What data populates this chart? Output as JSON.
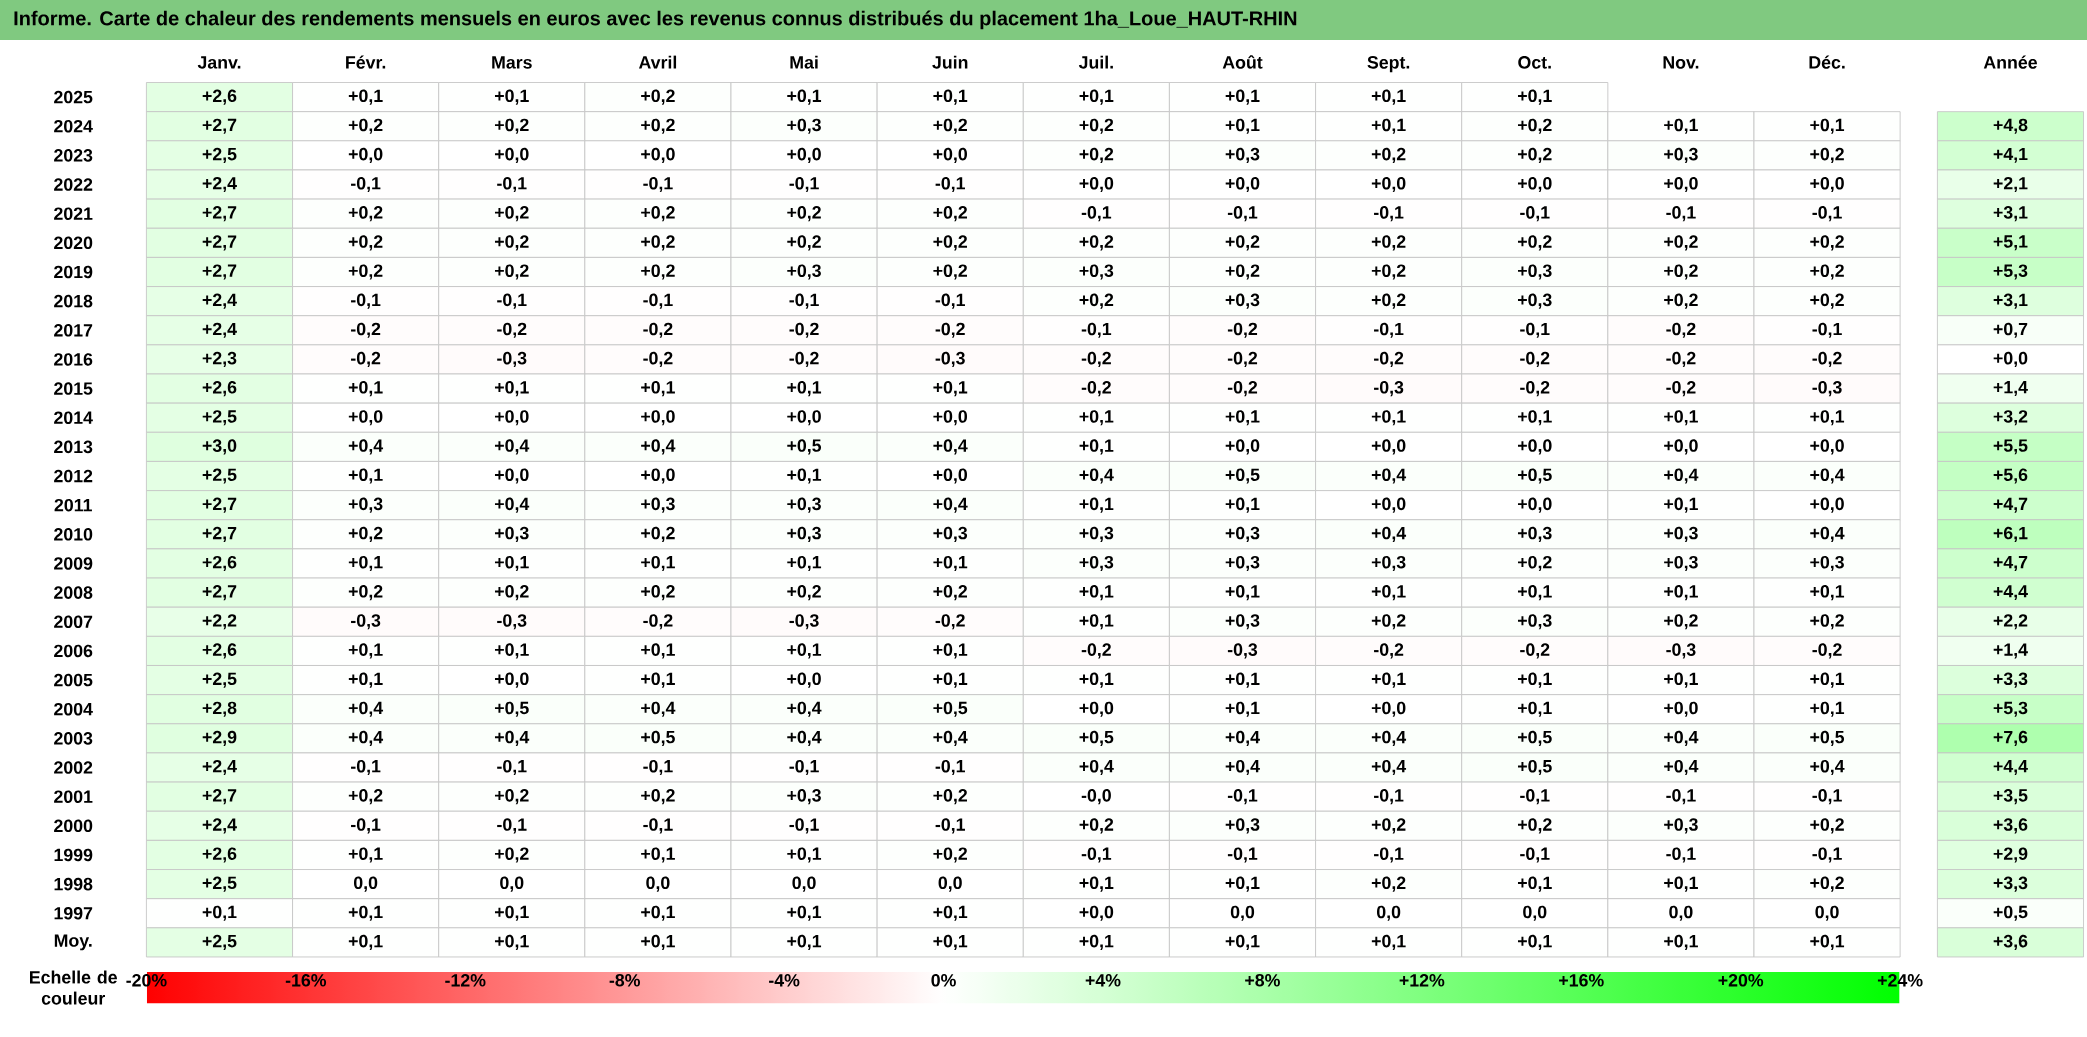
{
  "chart_data": {
    "type": "heatmap",
    "title": "Informe. Carte de chaleur des rendements mensuels en euros avec les revenus connus distribués du placement 1ha_Loue_HAUT-RHIN",
    "categories": [
      "Janv.",
      "Févr.",
      "Mars",
      "Avril",
      "Mai",
      "Juin",
      "Juil.",
      "Août",
      "Sept.",
      "Oct.",
      "Nov.",
      "Déc.",
      "Année"
    ],
    "y_categories": [
      "2025",
      "2024",
      "2023",
      "2022",
      "2021",
      "2020",
      "2019",
      "2018",
      "2017",
      "2016",
      "2015",
      "2014",
      "2013",
      "2012",
      "2011",
      "2010",
      "2009",
      "2008",
      "2007",
      "2006",
      "2005",
      "2004",
      "2003",
      "2002",
      "2001",
      "2000",
      "1999",
      "1998",
      "1997",
      "Moy."
    ],
    "cells": [
      [
        2.6,
        0.1,
        0.1,
        0.2,
        0.1,
        0.1,
        0.1,
        0.1,
        0.1,
        0.1,
        null,
        null,
        null
      ],
      [
        2.7,
        0.2,
        0.2,
        0.2,
        0.3,
        0.2,
        0.2,
        0.1,
        0.1,
        0.2,
        0.1,
        0.1,
        4.8
      ],
      [
        2.5,
        0.0,
        0.0,
        0.0,
        0.0,
        0.0,
        0.2,
        0.3,
        0.2,
        0.2,
        0.3,
        0.2,
        4.1
      ],
      [
        2.4,
        -0.1,
        -0.1,
        -0.1,
        -0.1,
        -0.1,
        0.0,
        0.0,
        0.0,
        0.0,
        0.0,
        0.0,
        2.1
      ],
      [
        2.7,
        0.2,
        0.2,
        0.2,
        0.2,
        0.2,
        -0.1,
        -0.1,
        -0.1,
        -0.1,
        -0.1,
        -0.1,
        3.1
      ],
      [
        2.7,
        0.2,
        0.2,
        0.2,
        0.2,
        0.2,
        0.2,
        0.2,
        0.2,
        0.2,
        0.2,
        0.2,
        5.1
      ],
      [
        2.7,
        0.2,
        0.2,
        0.2,
        0.3,
        0.2,
        0.3,
        0.2,
        0.2,
        0.3,
        0.2,
        0.2,
        5.3
      ],
      [
        2.4,
        -0.1,
        -0.1,
        -0.1,
        -0.1,
        -0.1,
        0.2,
        0.3,
        0.2,
        0.3,
        0.2,
        0.2,
        3.1
      ],
      [
        2.4,
        -0.2,
        -0.2,
        -0.2,
        -0.2,
        -0.2,
        -0.1,
        -0.2,
        -0.1,
        -0.1,
        -0.2,
        -0.1,
        0.7
      ],
      [
        2.3,
        -0.2,
        -0.3,
        -0.2,
        -0.2,
        -0.3,
        -0.2,
        -0.2,
        -0.2,
        -0.2,
        -0.2,
        -0.2,
        0.0
      ],
      [
        2.6,
        0.1,
        0.1,
        0.1,
        0.1,
        0.1,
        -0.2,
        -0.2,
        -0.3,
        -0.2,
        -0.2,
        -0.3,
        1.4
      ],
      [
        2.5,
        0.0,
        0.0,
        0.0,
        0.0,
        0.0,
        0.1,
        0.1,
        0.1,
        0.1,
        0.1,
        0.1,
        3.2
      ],
      [
        3.0,
        0.4,
        0.4,
        0.4,
        0.5,
        0.4,
        0.1,
        0.0,
        0.0,
        0.0,
        0.0,
        0.0,
        5.5
      ],
      [
        2.5,
        0.1,
        0.0,
        0.0,
        0.1,
        0.0,
        0.4,
        0.5,
        0.4,
        0.5,
        0.4,
        0.4,
        5.6
      ],
      [
        2.7,
        0.3,
        0.4,
        0.3,
        0.3,
        0.4,
        0.1,
        0.1,
        0.0,
        0.0,
        0.1,
        0.0,
        4.7
      ],
      [
        2.7,
        0.2,
        0.3,
        0.2,
        0.3,
        0.3,
        0.3,
        0.3,
        0.4,
        0.3,
        0.3,
        0.4,
        6.1
      ],
      [
        2.6,
        0.1,
        0.1,
        0.1,
        0.1,
        0.1,
        0.3,
        0.3,
        0.3,
        0.2,
        0.3,
        0.3,
        4.7
      ],
      [
        2.7,
        0.2,
        0.2,
        0.2,
        0.2,
        0.2,
        0.1,
        0.1,
        0.1,
        0.1,
        0.1,
        0.1,
        4.4
      ],
      [
        2.2,
        -0.3,
        -0.3,
        -0.2,
        -0.3,
        -0.2,
        0.1,
        0.3,
        0.2,
        0.3,
        0.2,
        0.2,
        2.2
      ],
      [
        2.6,
        0.1,
        0.1,
        0.1,
        0.1,
        0.1,
        -0.2,
        -0.3,
        -0.2,
        -0.2,
        -0.3,
        -0.2,
        1.4
      ],
      [
        2.5,
        0.1,
        0.0,
        0.1,
        0.0,
        0.1,
        0.1,
        0.1,
        0.1,
        0.1,
        0.1,
        0.1,
        3.3
      ],
      [
        2.8,
        0.4,
        0.5,
        0.4,
        0.4,
        0.5,
        0.0,
        0.1,
        0.0,
        0.1,
        0.0,
        0.1,
        5.3
      ],
      [
        2.9,
        0.4,
        0.4,
        0.5,
        0.4,
        0.4,
        0.5,
        0.4,
        0.4,
        0.5,
        0.4,
        0.5,
        7.6
      ],
      [
        2.4,
        -0.1,
        -0.1,
        -0.1,
        -0.1,
        -0.1,
        0.4,
        0.4,
        0.4,
        0.5,
        0.4,
        0.4,
        4.4
      ],
      [
        2.7,
        0.2,
        0.2,
        0.2,
        0.3,
        0.2,
        -0.0,
        -0.1,
        -0.1,
        -0.1,
        -0.1,
        -0.1,
        3.5
      ],
      [
        2.4,
        -0.1,
        -0.1,
        -0.1,
        -0.1,
        -0.1,
        0.2,
        0.3,
        0.2,
        0.2,
        0.3,
        0.2,
        3.6
      ],
      [
        2.6,
        0.1,
        0.2,
        0.1,
        0.1,
        0.2,
        -0.1,
        -0.1,
        -0.1,
        -0.1,
        -0.1,
        -0.1,
        2.9
      ],
      [
        2.5,
        0.0,
        0.0,
        0.0,
        0.0,
        0.0,
        0.1,
        0.1,
        0.2,
        0.1,
        0.1,
        0.2,
        3.3
      ],
      [
        0.1,
        0.1,
        0.1,
        0.1,
        0.1,
        0.1,
        0.0,
        0.0,
        0.0,
        0.0,
        0.0,
        0.0,
        0.5
      ],
      [
        2.5,
        0.1,
        0.1,
        0.1,
        0.1,
        0.1,
        0.1,
        0.1,
        0.1,
        0.1,
        0.1,
        0.1,
        3.6
      ]
    ],
    "cell_labels": [
      [
        "+2,6",
        "+0,1",
        "+0,1",
        "+0,2",
        "+0,1",
        "+0,1",
        "+0,1",
        "+0,1",
        "+0,1",
        "+0,1",
        null,
        null,
        null
      ],
      [
        "+2,7",
        "+0,2",
        "+0,2",
        "+0,2",
        "+0,3",
        "+0,2",
        "+0,2",
        "+0,1",
        "+0,1",
        "+0,2",
        "+0,1",
        "+0,1",
        "+4,8"
      ],
      [
        "+2,5",
        "+0,0",
        "+0,0",
        "+0,0",
        "+0,0",
        "+0,0",
        "+0,2",
        "+0,3",
        "+0,2",
        "+0,2",
        "+0,3",
        "+0,2",
        "+4,1"
      ],
      [
        "+2,4",
        "-0,1",
        "-0,1",
        "-0,1",
        "-0,1",
        "-0,1",
        "+0,0",
        "+0,0",
        "+0,0",
        "+0,0",
        "+0,0",
        "+0,0",
        "+2,1"
      ],
      [
        "+2,7",
        "+0,2",
        "+0,2",
        "+0,2",
        "+0,2",
        "+0,2",
        "-0,1",
        "-0,1",
        "-0,1",
        "-0,1",
        "-0,1",
        "-0,1",
        "+3,1"
      ],
      [
        "+2,7",
        "+0,2",
        "+0,2",
        "+0,2",
        "+0,2",
        "+0,2",
        "+0,2",
        "+0,2",
        "+0,2",
        "+0,2",
        "+0,2",
        "+0,2",
        "+5,1"
      ],
      [
        "+2,7",
        "+0,2",
        "+0,2",
        "+0,2",
        "+0,3",
        "+0,2",
        "+0,3",
        "+0,2",
        "+0,2",
        "+0,3",
        "+0,2",
        "+0,2",
        "+5,3"
      ],
      [
        "+2,4",
        "-0,1",
        "-0,1",
        "-0,1",
        "-0,1",
        "-0,1",
        "+0,2",
        "+0,3",
        "+0,2",
        "+0,3",
        "+0,2",
        "+0,2",
        "+3,1"
      ],
      [
        "+2,4",
        "-0,2",
        "-0,2",
        "-0,2",
        "-0,2",
        "-0,2",
        "-0,1",
        "-0,2",
        "-0,1",
        "-0,1",
        "-0,2",
        "-0,1",
        "+0,7"
      ],
      [
        "+2,3",
        "-0,2",
        "-0,3",
        "-0,2",
        "-0,2",
        "-0,3",
        "-0,2",
        "-0,2",
        "-0,2",
        "-0,2",
        "-0,2",
        "-0,2",
        "+0,0"
      ],
      [
        "+2,6",
        "+0,1",
        "+0,1",
        "+0,1",
        "+0,1",
        "+0,1",
        "-0,2",
        "-0,2",
        "-0,3",
        "-0,2",
        "-0,2",
        "-0,3",
        "+1,4"
      ],
      [
        "+2,5",
        "+0,0",
        "+0,0",
        "+0,0",
        "+0,0",
        "+0,0",
        "+0,1",
        "+0,1",
        "+0,1",
        "+0,1",
        "+0,1",
        "+0,1",
        "+3,2"
      ],
      [
        "+3,0",
        "+0,4",
        "+0,4",
        "+0,4",
        "+0,5",
        "+0,4",
        "+0,1",
        "+0,0",
        "+0,0",
        "+0,0",
        "+0,0",
        "+0,0",
        "+5,5"
      ],
      [
        "+2,5",
        "+0,1",
        "+0,0",
        "+0,0",
        "+0,1",
        "+0,0",
        "+0,4",
        "+0,5",
        "+0,4",
        "+0,5",
        "+0,4",
        "+0,4",
        "+5,6"
      ],
      [
        "+2,7",
        "+0,3",
        "+0,4",
        "+0,3",
        "+0,3",
        "+0,4",
        "+0,1",
        "+0,1",
        "+0,0",
        "+0,0",
        "+0,1",
        "+0,0",
        "+4,7"
      ],
      [
        "+2,7",
        "+0,2",
        "+0,3",
        "+0,2",
        "+0,3",
        "+0,3",
        "+0,3",
        "+0,3",
        "+0,4",
        "+0,3",
        "+0,3",
        "+0,4",
        "+6,1"
      ],
      [
        "+2,6",
        "+0,1",
        "+0,1",
        "+0,1",
        "+0,1",
        "+0,1",
        "+0,3",
        "+0,3",
        "+0,3",
        "+0,2",
        "+0,3",
        "+0,3",
        "+4,7"
      ],
      [
        "+2,7",
        "+0,2",
        "+0,2",
        "+0,2",
        "+0,2",
        "+0,2",
        "+0,1",
        "+0,1",
        "+0,1",
        "+0,1",
        "+0,1",
        "+0,1",
        "+4,4"
      ],
      [
        "+2,2",
        "-0,3",
        "-0,3",
        "-0,2",
        "-0,3",
        "-0,2",
        "+0,1",
        "+0,3",
        "+0,2",
        "+0,3",
        "+0,2",
        "+0,2",
        "+2,2"
      ],
      [
        "+2,6",
        "+0,1",
        "+0,1",
        "+0,1",
        "+0,1",
        "+0,1",
        "-0,2",
        "-0,3",
        "-0,2",
        "-0,2",
        "-0,3",
        "-0,2",
        "+1,4"
      ],
      [
        "+2,5",
        "+0,1",
        "+0,0",
        "+0,1",
        "+0,0",
        "+0,1",
        "+0,1",
        "+0,1",
        "+0,1",
        "+0,1",
        "+0,1",
        "+0,1",
        "+3,3"
      ],
      [
        "+2,8",
        "+0,4",
        "+0,5",
        "+0,4",
        "+0,4",
        "+0,5",
        "+0,0",
        "+0,1",
        "+0,0",
        "+0,1",
        "+0,0",
        "+0,1",
        "+5,3"
      ],
      [
        "+2,9",
        "+0,4",
        "+0,4",
        "+0,5",
        "+0,4",
        "+0,4",
        "+0,5",
        "+0,4",
        "+0,4",
        "+0,5",
        "+0,4",
        "+0,5",
        "+7,6"
      ],
      [
        "+2,4",
        "-0,1",
        "-0,1",
        "-0,1",
        "-0,1",
        "-0,1",
        "+0,4",
        "+0,4",
        "+0,4",
        "+0,5",
        "+0,4",
        "+0,4",
        "+4,4"
      ],
      [
        "+2,7",
        "+0,2",
        "+0,2",
        "+0,2",
        "+0,3",
        "+0,2",
        "-0,0",
        "-0,1",
        "-0,1",
        "-0,1",
        "-0,1",
        "-0,1",
        "+3,5"
      ],
      [
        "+2,4",
        "-0,1",
        "-0,1",
        "-0,1",
        "-0,1",
        "-0,1",
        "+0,2",
        "+0,3",
        "+0,2",
        "+0,2",
        "+0,3",
        "+0,2",
        "+3,6"
      ],
      [
        "+2,6",
        "+0,1",
        "+0,2",
        "+0,1",
        "+0,1",
        "+0,2",
        "-0,1",
        "-0,1",
        "-0,1",
        "-0,1",
        "-0,1",
        "-0,1",
        "+2,9"
      ],
      [
        "+2,5",
        "0,0",
        "0,0",
        "0,0",
        "0,0",
        "0,0",
        "+0,1",
        "+0,1",
        "+0,2",
        "+0,1",
        "+0,1",
        "+0,2",
        "+3,3"
      ],
      [
        "+0,1",
        "+0,1",
        "+0,1",
        "+0,1",
        "+0,1",
        "+0,1",
        "+0,0",
        "0,0",
        "0,0",
        "0,0",
        "0,0",
        "0,0",
        "+0,5"
      ],
      [
        "+2,5",
        "+0,1",
        "+0,1",
        "+0,1",
        "+0,1",
        "+0,1",
        "+0,1",
        "+0,1",
        "+0,1",
        "+0,1",
        "+0,1",
        "+0,1",
        "+3,6"
      ]
    ],
    "clabel": "Echelle de couleur",
    "clim": [
      -20,
      24
    ],
    "cticks": [
      {
        "value": -20,
        "label": "-20%"
      },
      {
        "value": -16,
        "label": "-16%"
      },
      {
        "value": -12,
        "label": "-12%"
      },
      {
        "value": -8,
        "label": "-8%"
      },
      {
        "value": -4,
        "label": "-4%"
      },
      {
        "value": 0,
        "label": "0%"
      },
      {
        "value": 4,
        "label": "+4%"
      },
      {
        "value": 8,
        "label": "+8%"
      },
      {
        "value": 12,
        "label": "+12%"
      },
      {
        "value": 16,
        "label": "+16%"
      },
      {
        "value": 20,
        "label": "+20%"
      },
      {
        "value": 24,
        "label": "+24%"
      }
    ]
  }
}
